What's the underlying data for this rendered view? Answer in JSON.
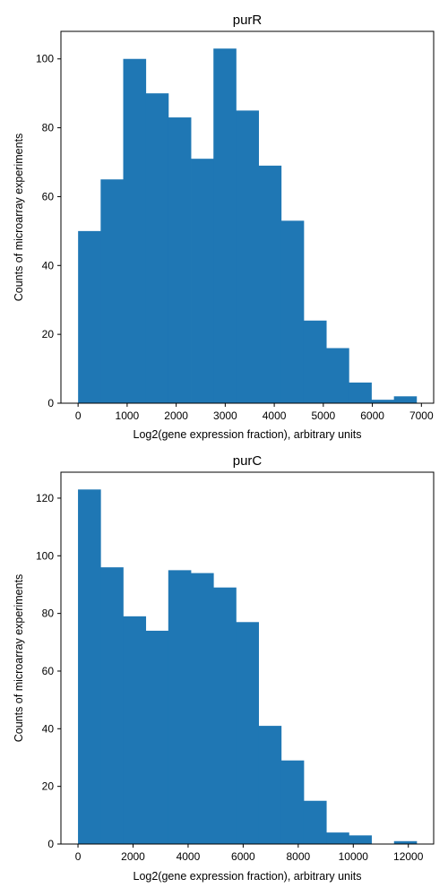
{
  "chart_data": [
    {
      "type": "bar",
      "title": "purR",
      "xlabel": "Log2(gene expression fraction), arbitrary units",
      "ylabel": "Counts of microarray experiments",
      "bin_edges": [
        0,
        460,
        920,
        1380,
        1840,
        2300,
        2760,
        3220,
        3680,
        4140,
        4600,
        5060,
        5520,
        5980,
        6440,
        6900
      ],
      "values": [
        50,
        65,
        100,
        90,
        83,
        71,
        103,
        85,
        69,
        53,
        24,
        16,
        6,
        1,
        2
      ],
      "xlim": [
        -350,
        7250
      ],
      "ylim": [
        0,
        108
      ],
      "xticks": [
        0,
        1000,
        2000,
        3000,
        4000,
        5000,
        6000,
        7000
      ],
      "yticks": [
        0,
        20,
        40,
        60,
        80,
        100
      ],
      "color": "#1f77b4"
    },
    {
      "type": "bar",
      "title": "purC",
      "xlabel": "Log2(gene expression fraction), arbitrary units",
      "ylabel": "Counts of microarray experiments",
      "bin_edges": [
        0,
        820,
        1640,
        2460,
        3280,
        4100,
        4920,
        5740,
        6560,
        7380,
        8200,
        9020,
        9840,
        10660,
        11480,
        12300
      ],
      "values": [
        123,
        96,
        79,
        74,
        95,
        94,
        89,
        77,
        41,
        29,
        15,
        4,
        3,
        0,
        1
      ],
      "xlim": [
        -620,
        12920
      ],
      "ylim": [
        0,
        129
      ],
      "xticks": [
        0,
        2000,
        4000,
        6000,
        8000,
        10000,
        12000
      ],
      "yticks": [
        0,
        20,
        40,
        60,
        80,
        100,
        120
      ],
      "color": "#1f77b4"
    }
  ]
}
